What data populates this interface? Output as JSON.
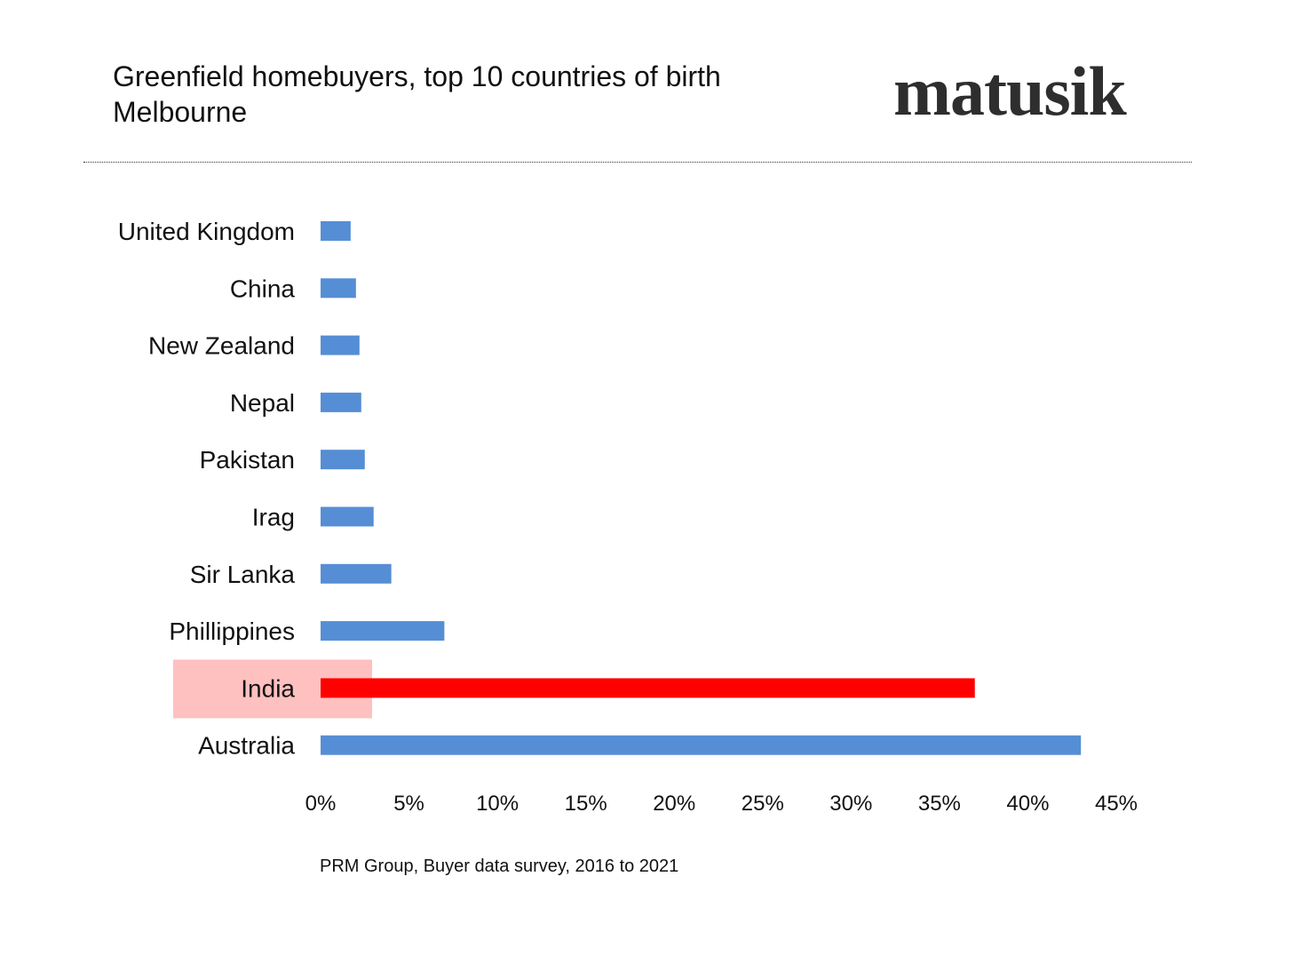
{
  "header": {
    "title": "Greenfield homebuyers, top 10 countries of birth",
    "subtitle": "Melbourne",
    "logo_text": "matusik"
  },
  "source": "PRM Group, Buyer data survey, 2016 to 2021",
  "chart_data": {
    "type": "bar",
    "orientation": "horizontal",
    "title": "Greenfield homebuyers, top 10 countries of birth",
    "subtitle": "Melbourne",
    "categories": [
      "United Kingdom",
      "China",
      "New Zealand",
      "Nepal",
      "Pakistan",
      "Irag",
      "Sir Lanka",
      "Phillippines",
      "India",
      "Australia"
    ],
    "values": [
      1.7,
      2.0,
      2.2,
      2.3,
      2.5,
      3.0,
      4.0,
      7.0,
      37.0,
      43.0
    ],
    "value_format": "percent",
    "xlim": [
      0,
      45
    ],
    "xticks": [
      0,
      5,
      10,
      15,
      20,
      25,
      30,
      35,
      40,
      45
    ],
    "xtick_labels": [
      "0%",
      "5%",
      "10%",
      "15%",
      "20%",
      "25%",
      "30%",
      "35%",
      "40%",
      "45%"
    ],
    "grid": false,
    "highlight_category": "India",
    "colors": {
      "bar": "#558ed5",
      "highlight_bar": "#ff0000",
      "highlight_background": "#ffc0c0"
    }
  }
}
